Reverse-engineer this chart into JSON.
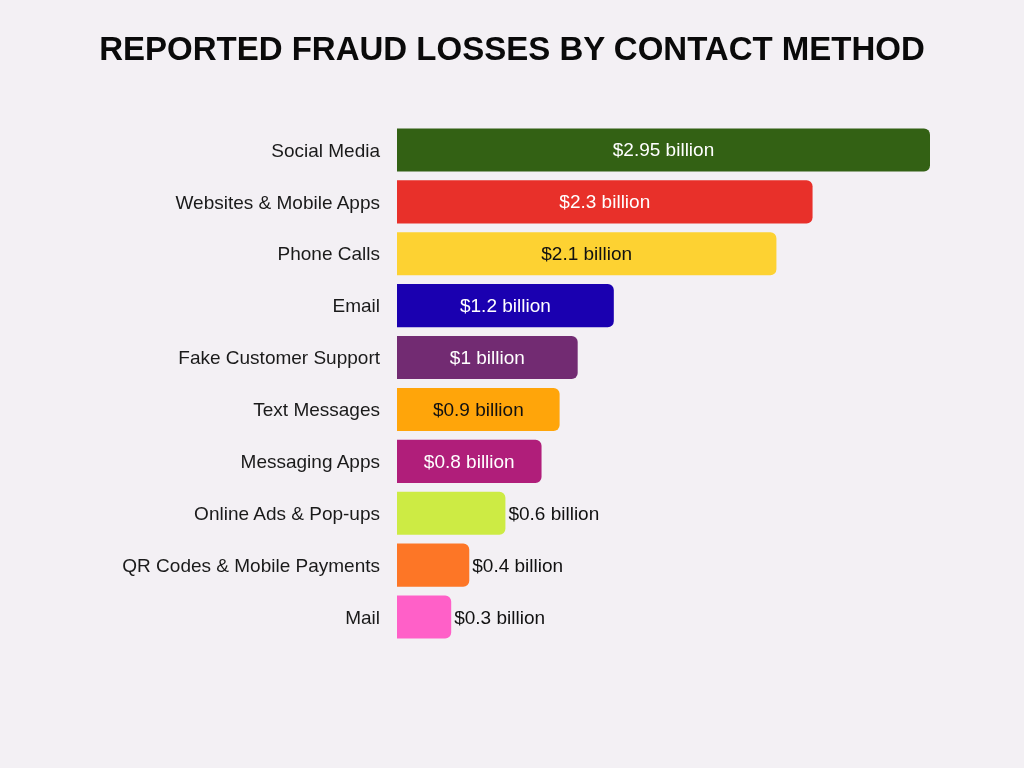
{
  "chart_data": {
    "type": "bar",
    "orientation": "horizontal",
    "title": "REPORTED FRAUD LOSSES BY CONTACT METHOD",
    "categories": [
      "Social Media",
      "Websites & Mobile Apps",
      "Phone Calls",
      "Email",
      "Fake Customer Support",
      "Text Messages",
      "Messaging Apps",
      "Online Ads & Pop-ups",
      "QR Codes & Mobile Payments",
      "Mail"
    ],
    "values": [
      2.95,
      2.3,
      2.1,
      1.2,
      1,
      0.9,
      0.8,
      0.6,
      0.4,
      0.3
    ],
    "value_labels": [
      "$2.95 billion",
      "$2.3 billion",
      "$2.1 billion",
      "$1.2 billion",
      "$1 billion",
      "$0.9 billion",
      "$0.8 billion",
      "$0.6 billion",
      "$0.4 billion",
      "$0.3 billion"
    ],
    "colors": [
      "#336114",
      "#e8302a",
      "#fdd232",
      "#1a00b0",
      "#722b72",
      "#ffa50a",
      "#b01e7a",
      "#cdeb44",
      "#fd7626",
      "#ff60c8"
    ]
  }
}
